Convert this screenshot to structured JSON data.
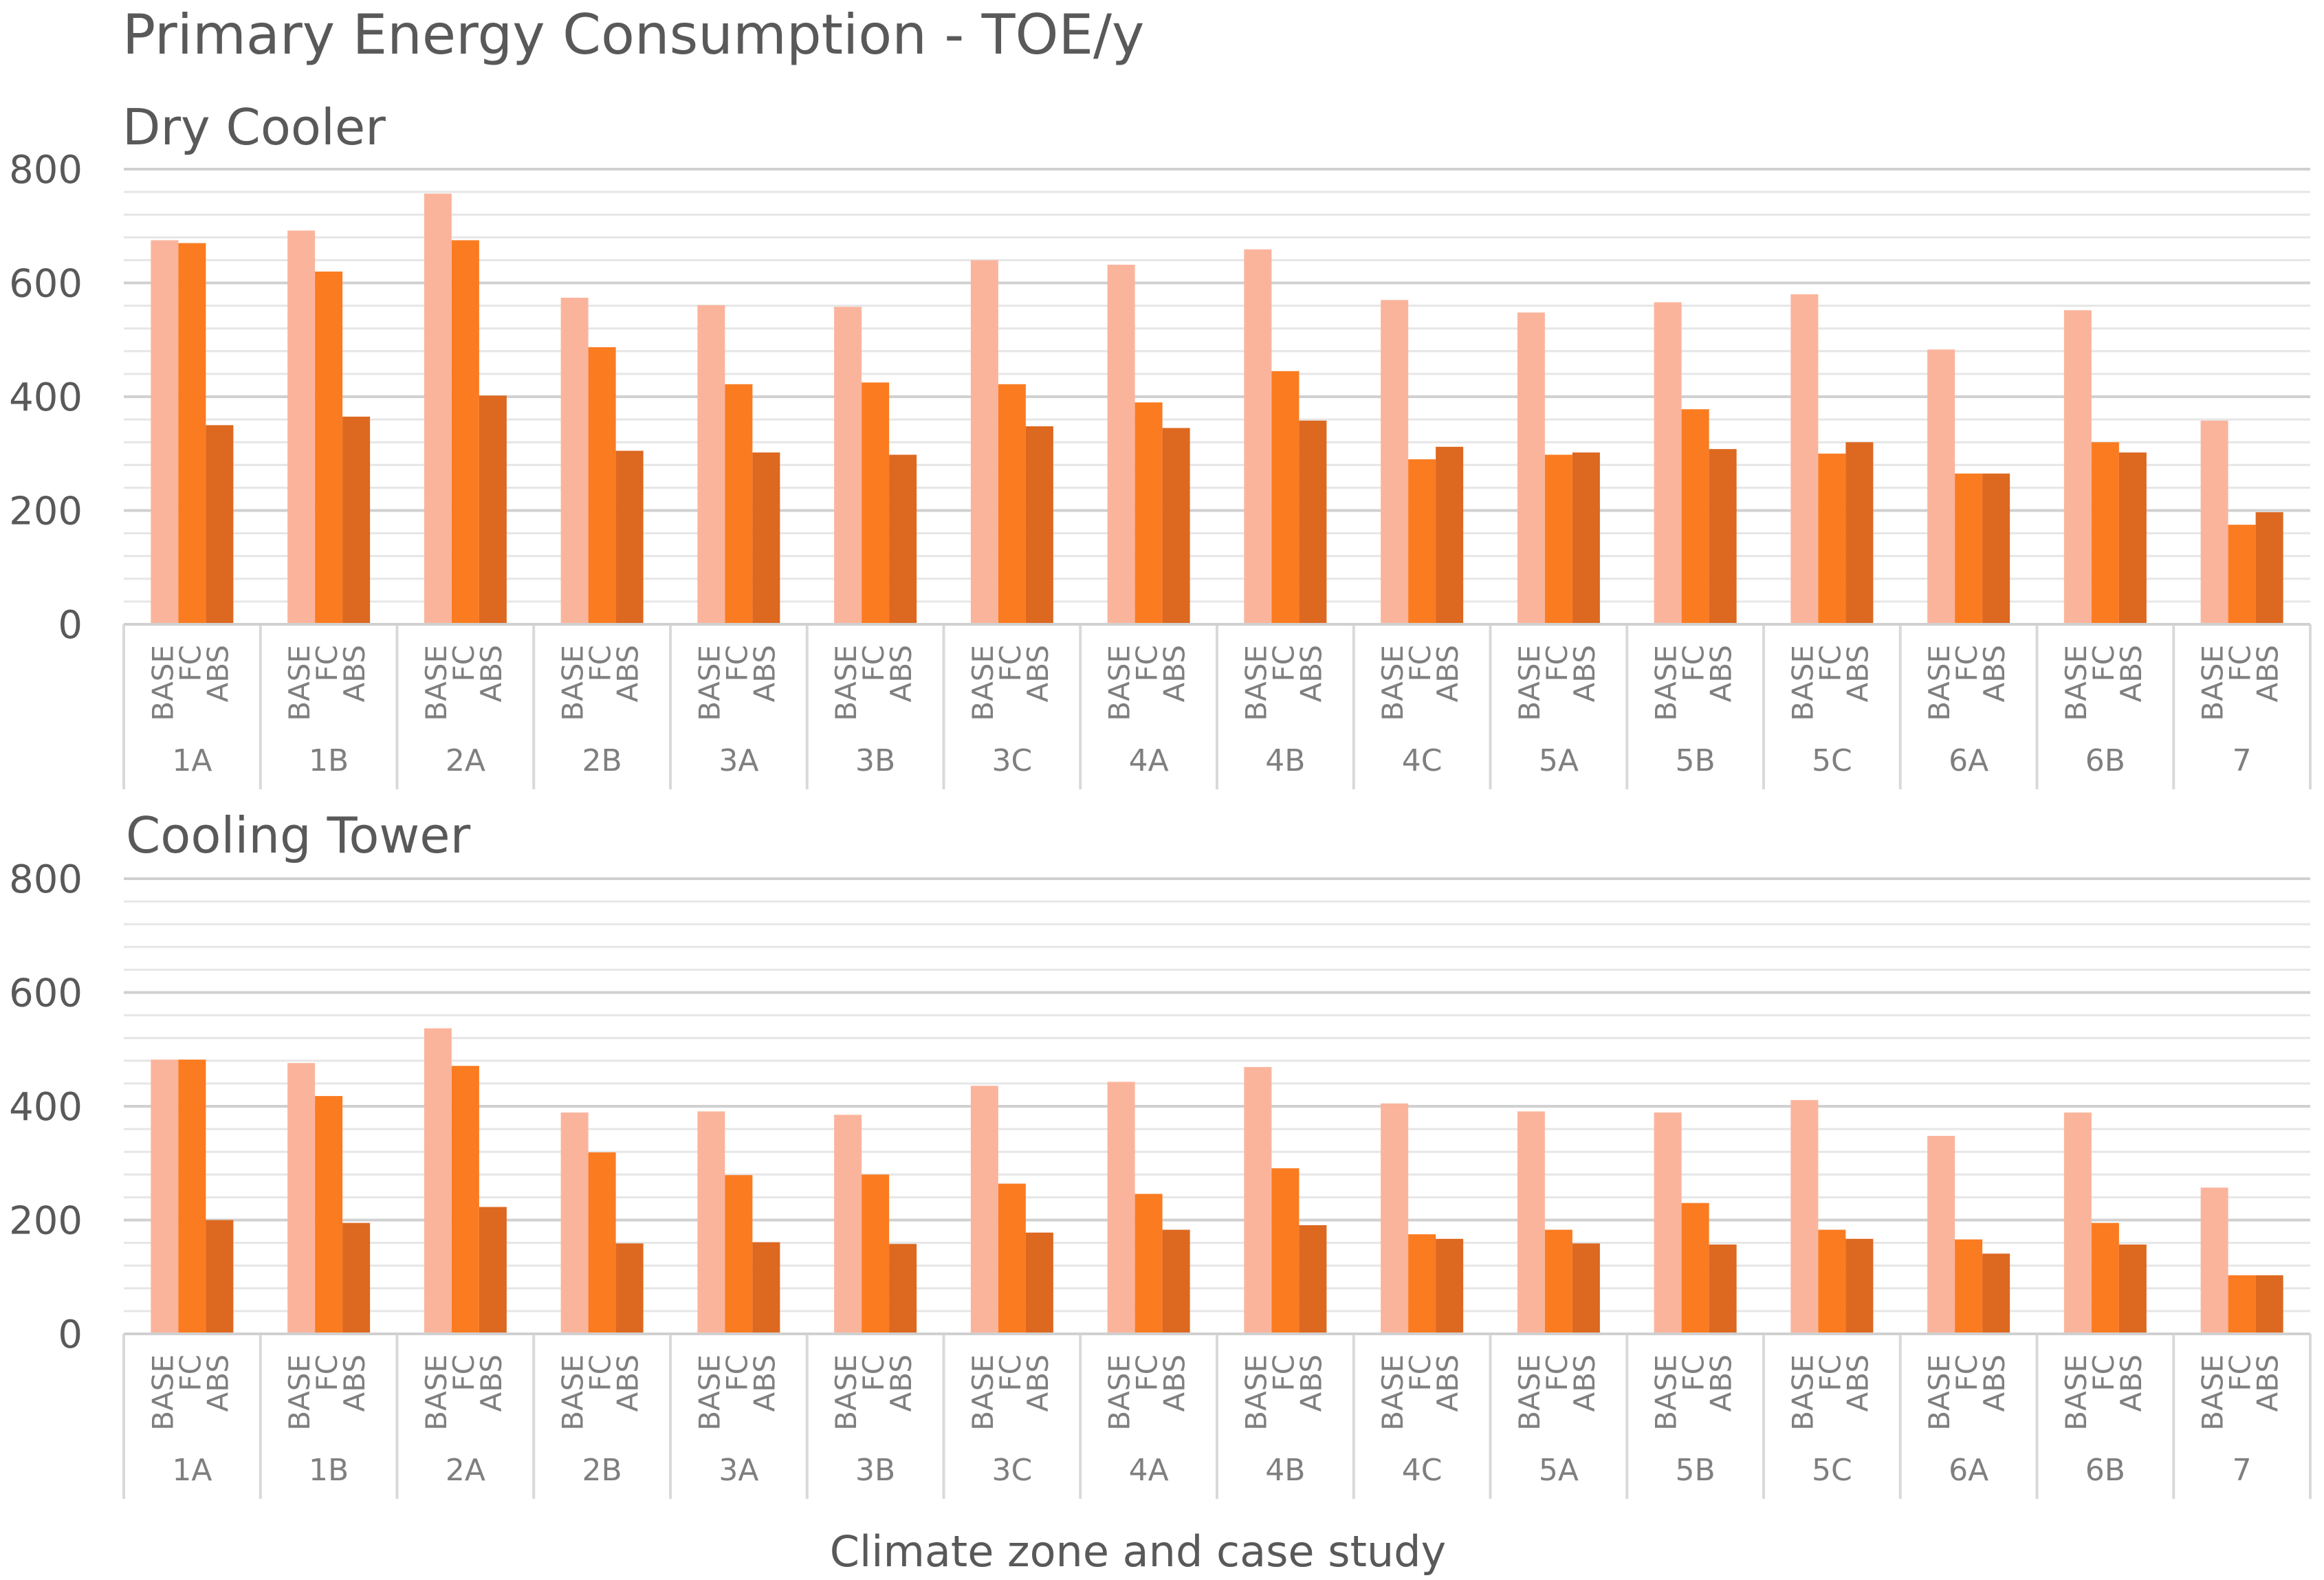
{
  "title": "Primary Energy Consumption - TOE/y",
  "xlabel": "Climate zone and case study",
  "colors": {
    "BASE": "#fbb49c",
    "FC": "#fb7b21",
    "ABS": "#dd6820",
    "grid": "#d9d9d9",
    "text": "#595959"
  },
  "chart_data": [
    {
      "type": "bar",
      "title": "Dry Cooler",
      "categories": [
        "1A",
        "1B",
        "2A",
        "2B",
        "3A",
        "3B",
        "3C",
        "4A",
        "4B",
        "4C",
        "5A",
        "5B",
        "5C",
        "6A",
        "6B",
        "7"
      ],
      "case_labels": [
        "BASE",
        "FC",
        "ABS"
      ],
      "ylim": [
        0,
        800
      ],
      "yticks": [
        0,
        200,
        400,
        600,
        800
      ],
      "ylabel": "",
      "series": [
        {
          "name": "BASE",
          "values": [
            675,
            692,
            757,
            574,
            561,
            558,
            640,
            632,
            659,
            570,
            548,
            566,
            580,
            483,
            552,
            358
          ]
        },
        {
          "name": "FC",
          "values": [
            670,
            620,
            675,
            487,
            422,
            425,
            422,
            390,
            445,
            290,
            298,
            378,
            300,
            265,
            320,
            175
          ]
        },
        {
          "name": "ABS",
          "values": [
            350,
            365,
            402,
            305,
            302,
            298,
            348,
            345,
            358,
            312,
            302,
            308,
            320,
            265,
            302,
            197
          ]
        }
      ]
    },
    {
      "type": "bar",
      "title": "Cooling Tower",
      "categories": [
        "1A",
        "1B",
        "2A",
        "2B",
        "3A",
        "3B",
        "3C",
        "4A",
        "4B",
        "4C",
        "5A",
        "5B",
        "5C",
        "6A",
        "6B",
        "7"
      ],
      "case_labels": [
        "BASE",
        "FC",
        "ABS"
      ],
      "ylim": [
        0,
        800
      ],
      "yticks": [
        0,
        200,
        400,
        600,
        800
      ],
      "ylabel": "",
      "series": [
        {
          "name": "BASE",
          "values": [
            482,
            476,
            537,
            389,
            391,
            385,
            436,
            443,
            469,
            405,
            391,
            389,
            411,
            348,
            389,
            257
          ]
        },
        {
          "name": "FC",
          "values": [
            482,
            418,
            471,
            319,
            279,
            280,
            264,
            246,
            291,
            175,
            183,
            230,
            183,
            166,
            195,
            103
          ]
        },
        {
          "name": "ABS",
          "values": [
            200,
            195,
            223,
            159,
            161,
            158,
            178,
            183,
            191,
            167,
            159,
            157,
            167,
            141,
            157,
            103
          ]
        }
      ]
    }
  ]
}
